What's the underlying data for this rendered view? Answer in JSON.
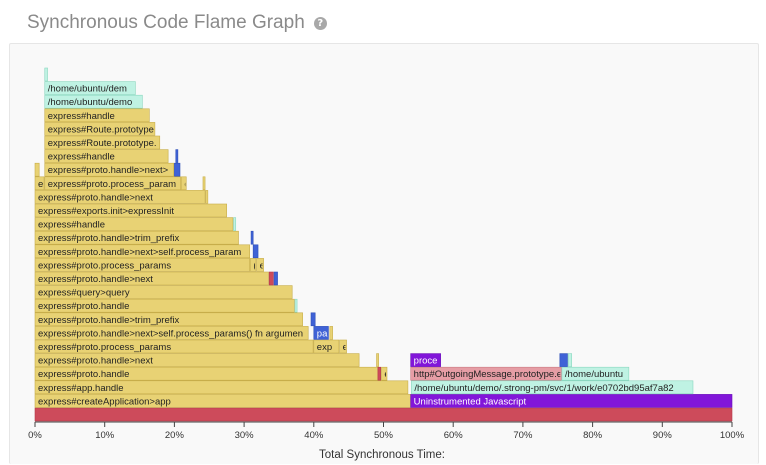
{
  "header": {
    "title": "Synchronous Code Flame Graph",
    "help_icon": "question-circle-icon"
  },
  "chart_data": {
    "type": "flame",
    "title": "Synchronous Code Flame Graph",
    "xlabel": "Total Synchronous Time:",
    "ylabel": "",
    "xlim": [
      0,
      100
    ],
    "xunit": "%",
    "x_ticks": [
      "0%",
      "10%",
      "20%",
      "30%",
      "40%",
      "50%",
      "60%",
      "70%",
      "80%",
      "90%",
      "100%"
    ],
    "colors": {
      "root": "#cd4b5b",
      "app": "#e8d274",
      "app_border": "#c7ad4a",
      "module": "#bff2e3",
      "module_border": "#8ad7bf",
      "native": "#8216d9",
      "native_blue": "#3f62d6",
      "http": "#e69da5"
    },
    "frames": [
      {
        "label": "",
        "depth": 0,
        "start": 0,
        "end": 100,
        "color": "root"
      },
      {
        "label": "express#createApplication>app",
        "depth": 1,
        "start": 0,
        "end": 53.9,
        "color": "app"
      },
      {
        "label": "Uninstrumented Javascript",
        "depth": 1,
        "start": 53.9,
        "end": 100,
        "color": "native"
      },
      {
        "label": "express#app.handle",
        "depth": 2,
        "start": 0,
        "end": 53.5,
        "color": "app"
      },
      {
        "label": "/home/ubuntu/demo/.strong-pm/svc/1/work/e0702bd95af7a82",
        "depth": 2,
        "start": 54.0,
        "end": 94.4,
        "color": "module"
      },
      {
        "label": "express#proto.handle",
        "depth": 3,
        "start": 0,
        "end": 49.2,
        "color": "app"
      },
      {
        "label": "",
        "depth": 3,
        "start": 49.2,
        "end": 49.6,
        "color": "root"
      },
      {
        "label": "e",
        "depth": 3,
        "start": 49.7,
        "end": 50.5,
        "color": "app"
      },
      {
        "label": "http#OutgoingMessage.prototype.e",
        "depth": 3,
        "start": 53.9,
        "end": 75.5,
        "color": "http"
      },
      {
        "label": "/home/ubuntu",
        "depth": 3,
        "start": 75.6,
        "end": 85.2,
        "color": "module"
      },
      {
        "label": "express#proto.handle>next",
        "depth": 4,
        "start": 0,
        "end": 46.5,
        "color": "app"
      },
      {
        "label": "",
        "depth": 4,
        "start": 49.0,
        "end": 49.3,
        "color": "app"
      },
      {
        "label": "proce",
        "depth": 4,
        "start": 53.9,
        "end": 58.2,
        "color": "native"
      },
      {
        "label": "",
        "depth": 4,
        "start": 75.3,
        "end": 76.4,
        "color": "native_blue"
      },
      {
        "label": "",
        "depth": 4,
        "start": 76.5,
        "end": 77.0,
        "color": "module"
      },
      {
        "label": "express#proto.process_params",
        "depth": 5,
        "start": 0,
        "end": 39.9,
        "color": "app"
      },
      {
        "label": "exp",
        "depth": 5,
        "start": 40.0,
        "end": 43.6,
        "color": "app"
      },
      {
        "label": "e",
        "depth": 5,
        "start": 43.7,
        "end": 44.7,
        "color": "app"
      },
      {
        "label": "express#proto.handle>next>self.process_params() fn argumen",
        "depth": 6,
        "start": 0,
        "end": 39.2,
        "color": "app"
      },
      {
        "label": "pa",
        "depth": 6,
        "start": 40.0,
        "end": 42.1,
        "color": "native_blue"
      },
      {
        "label": "",
        "depth": 6,
        "start": 42.3,
        "end": 42.7,
        "color": "app"
      },
      {
        "label": "express#proto.handle>trim_prefix",
        "depth": 7,
        "start": 0,
        "end": 38.4,
        "color": "app"
      },
      {
        "label": "",
        "depth": 7,
        "start": 39.6,
        "end": 40.2,
        "color": "native_blue"
      },
      {
        "label": "express#proto.handle",
        "depth": 8,
        "start": 0,
        "end": 37.2,
        "color": "app"
      },
      {
        "label": "",
        "depth": 8,
        "start": 37.3,
        "end": 37.6,
        "color": "module"
      },
      {
        "label": "express#query>query",
        "depth": 9,
        "start": 0,
        "end": 36.9,
        "color": "app"
      },
      {
        "label": "express#proto.handle>next",
        "depth": 10,
        "start": 0,
        "end": 33.5,
        "color": "app"
      },
      {
        "label": "",
        "depth": 10,
        "start": 33.6,
        "end": 34.2,
        "color": "root"
      },
      {
        "label": "",
        "depth": 10,
        "start": 34.3,
        "end": 34.8,
        "color": "native_blue"
      },
      {
        "label": "express#proto.process_params",
        "depth": 11,
        "start": 0,
        "end": 30.8,
        "color": "app"
      },
      {
        "label": "(",
        "depth": 11,
        "start": 30.9,
        "end": 31.7,
        "color": "app"
      },
      {
        "label": "e",
        "depth": 11,
        "start": 31.8,
        "end": 32.8,
        "color": "app"
      },
      {
        "label": "express#proto.handle>next>self.process_param",
        "depth": 12,
        "start": 0,
        "end": 30.8,
        "color": "app"
      },
      {
        "label": "",
        "depth": 12,
        "start": 31.3,
        "end": 32.0,
        "color": "native_blue"
      },
      {
        "label": "express#proto.handle>trim_prefix",
        "depth": 13,
        "start": 0,
        "end": 29.2,
        "color": "app"
      },
      {
        "label": "",
        "depth": 13,
        "start": 31.0,
        "end": 31.3,
        "color": "native_blue"
      },
      {
        "label": "express#handle",
        "depth": 14,
        "start": 0,
        "end": 28.4,
        "color": "app"
      },
      {
        "label": "",
        "depth": 14,
        "start": 28.5,
        "end": 28.8,
        "color": "module"
      },
      {
        "label": "express#exports.init>expressInit",
        "depth": 15,
        "start": 0,
        "end": 27.5,
        "color": "app"
      },
      {
        "label": "express#proto.handle>next",
        "depth": 16,
        "start": 0,
        "end": 24.4,
        "color": "app"
      },
      {
        "label": "",
        "depth": 16,
        "start": 24.5,
        "end": 24.8,
        "color": "app"
      },
      {
        "label": "e",
        "depth": 17,
        "start": 0,
        "end": 1.3,
        "color": "app"
      },
      {
        "label": "express#proto.process_param",
        "depth": 17,
        "start": 1.4,
        "end": 20.9,
        "color": "app"
      },
      {
        "label": "e",
        "depth": 17,
        "start": 21.0,
        "end": 21.7,
        "color": "app"
      },
      {
        "label": "",
        "depth": 17,
        "start": 24.1,
        "end": 24.4,
        "color": "app"
      },
      {
        "label": "",
        "depth": 18,
        "start": 0,
        "end": 0.6,
        "color": "app"
      },
      {
        "label": "express#proto.handle>next>",
        "depth": 18,
        "start": 1.4,
        "end": 19.9,
        "color": "app"
      },
      {
        "label": "",
        "depth": 18,
        "start": 20.0,
        "end": 20.8,
        "color": "native_blue"
      },
      {
        "label": "express#handle",
        "depth": 19,
        "start": 1.4,
        "end": 19.1,
        "color": "app"
      },
      {
        "label": "",
        "depth": 19,
        "start": 20.2,
        "end": 20.5,
        "color": "native_blue"
      },
      {
        "label": "express#Route.prototype.",
        "depth": 20,
        "start": 1.4,
        "end": 17.9,
        "color": "app"
      },
      {
        "label": "express#Route.prototype",
        "depth": 21,
        "start": 1.4,
        "end": 17.2,
        "color": "app"
      },
      {
        "label": "express#handle",
        "depth": 22,
        "start": 1.4,
        "end": 16.4,
        "color": "app"
      },
      {
        "label": "/home/ubuntu/demo",
        "depth": 23,
        "start": 1.4,
        "end": 15.4,
        "color": "module"
      },
      {
        "label": "/home/ubuntu/dem",
        "depth": 24,
        "start": 1.4,
        "end": 14.4,
        "color": "module"
      },
      {
        "label": "",
        "depth": 25,
        "start": 1.4,
        "end": 1.8,
        "color": "module"
      }
    ]
  }
}
